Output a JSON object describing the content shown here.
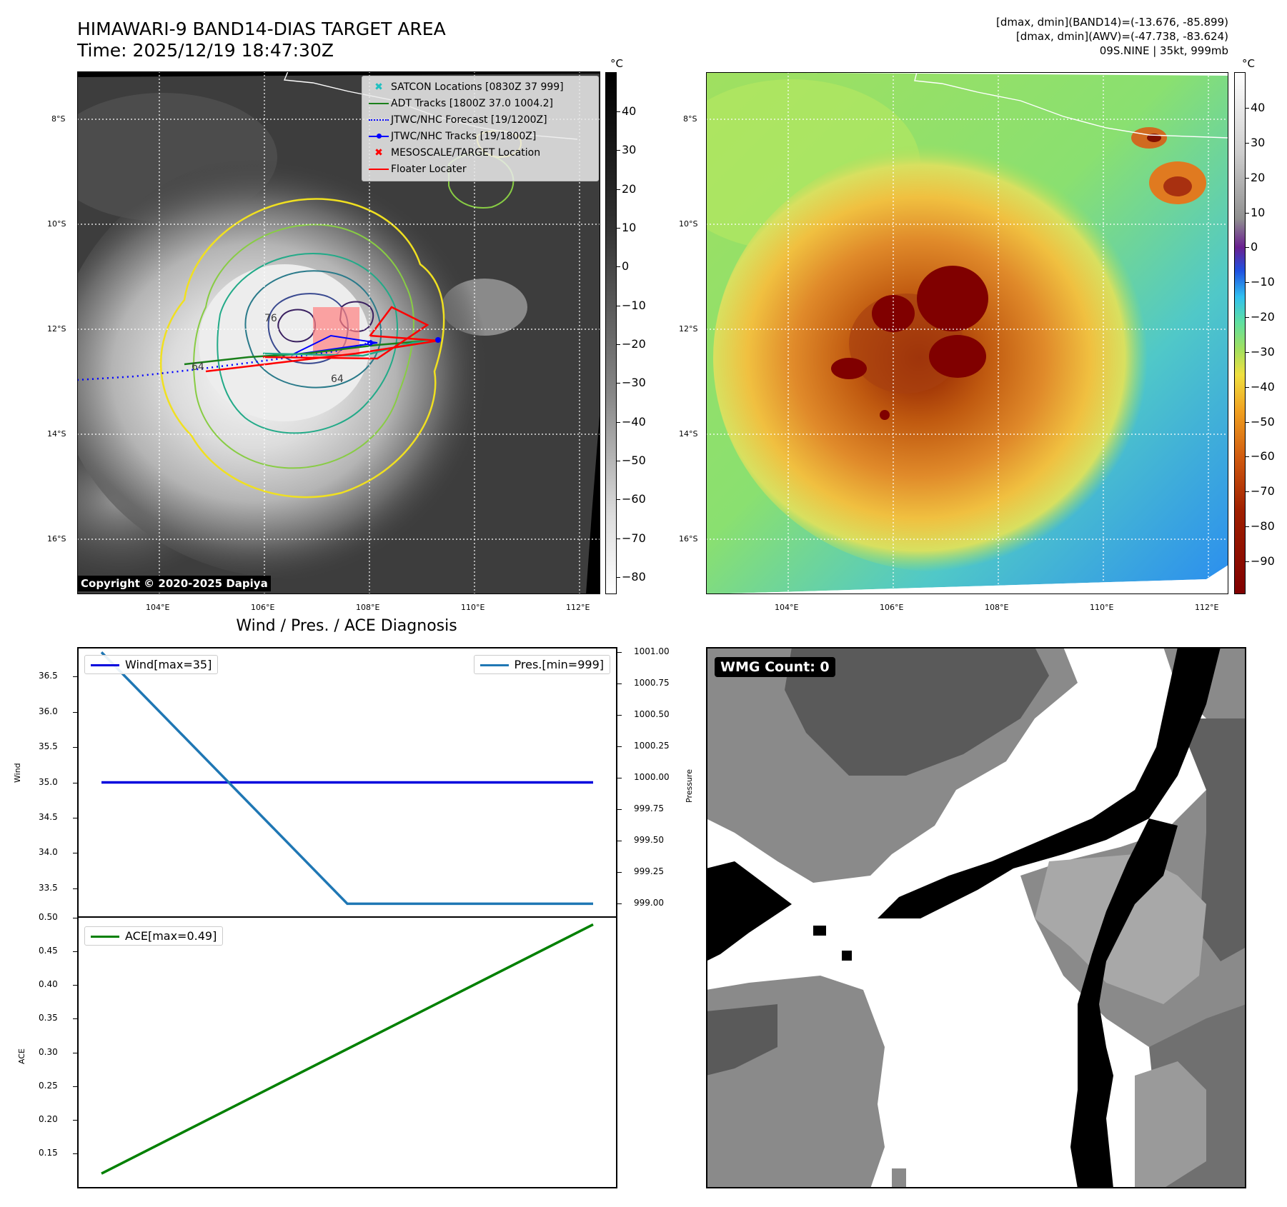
{
  "top_left": {
    "title_line1": "HIMAWARI-9 BAND14-DIAS TARGET AREA",
    "title_line2": "Time: 2025/12/19 18:47:30Z",
    "colorbar_unit": "°C",
    "colorbar_ticks": [
      "40",
      "30",
      "20",
      "10",
      "0",
      "−10",
      "−20",
      "−30",
      "−40",
      "−50",
      "−60",
      "−70",
      "−80"
    ],
    "lat_ticks": [
      "8°S",
      "10°S",
      "12°S",
      "14°S",
      "16°S"
    ],
    "lon_ticks": [
      "104°E",
      "106°E",
      "108°E",
      "110°E",
      "112°E"
    ],
    "copyright": "Copyright © 2020-2025 Dapiya",
    "contour_labels": [
      "76",
      "64",
      "64",
      "64",
      "64"
    ],
    "legend": [
      {
        "label": "SATCON Locations [0830Z 37 999]",
        "color": "#20c0c0",
        "marker": "x"
      },
      {
        "label": "ADT Tracks [1800Z 37.0 1004.2]",
        "color": "#1a7f1a",
        "marker": "line"
      },
      {
        "label": "JTWC/NHC Forecast [19/1200Z]",
        "color": "#0000ff",
        "marker": "dotted"
      },
      {
        "label": "JTWC/NHC Tracks [19/1800Z]",
        "color": "#0000ff",
        "marker": "line-dot"
      },
      {
        "label": "MESOSCALE/TARGET Location",
        "color": "#ff0000",
        "marker": "x"
      },
      {
        "label": "Floater Locater",
        "color": "#ff0000",
        "marker": "line"
      }
    ]
  },
  "top_right": {
    "info_line1": "[dmax, dmin](BAND14)=(-13.676, -85.899)",
    "info_line2": "[dmax, dmin](AWV)=(-47.738, -83.624)",
    "info_line3": "09S.NINE | 35kt, 999mb",
    "colorbar_unit": "°C",
    "colorbar_ticks": [
      "40",
      "30",
      "20",
      "10",
      "0",
      "−10",
      "−20",
      "−30",
      "−40",
      "−50",
      "−60",
      "−70",
      "−80",
      "−90"
    ],
    "lat_ticks": [
      "8°S",
      "10°S",
      "12°S",
      "14°S",
      "16°S"
    ],
    "lon_ticks": [
      "104°E",
      "106°E",
      "108°E",
      "110°E",
      "112°E"
    ]
  },
  "bottom_right": {
    "badge": "WMG Count: 0"
  },
  "chart_data": [
    {
      "type": "line",
      "title": "Wind / Pres. / ACE Diagnosis",
      "x": [
        0,
        1,
        2
      ],
      "ylabel": "Wind",
      "ylabel_right": "Pressure",
      "ylim": [
        33.1,
        36.9
      ],
      "ylim_right": [
        998.9,
        1001.03
      ],
      "yticks": [
        "36.5",
        "36.0",
        "35.5",
        "35.0",
        "34.5",
        "34.0",
        "33.5"
      ],
      "yticks_right": [
        "1001.00",
        "1000.75",
        "1000.50",
        "1000.25",
        "1000.00",
        "999.75",
        "999.50",
        "999.25",
        "999.00"
      ],
      "series": [
        {
          "name": "Wind[max=35]",
          "axis": "left",
          "color": "#0000dd",
          "values": [
            35,
            35,
            35
          ]
        },
        {
          "name": "Pres.[min=999]",
          "axis": "right",
          "color": "#1f77b4",
          "values": [
            1001,
            999,
            999
          ]
        }
      ],
      "legend": [
        "top-left",
        "top-right"
      ]
    },
    {
      "type": "line",
      "ylabel": "ACE",
      "ylim": [
        0.1,
        0.5
      ],
      "yticks": [
        "0.50",
        "0.45",
        "0.40",
        "0.35",
        "0.30",
        "0.25",
        "0.20",
        "0.15"
      ],
      "x": [
        0,
        2
      ],
      "series": [
        {
          "name": "ACE[max=0.49]",
          "color": "#008000",
          "values": [
            0.12,
            0.49
          ]
        }
      ],
      "legend": "top-left"
    }
  ]
}
